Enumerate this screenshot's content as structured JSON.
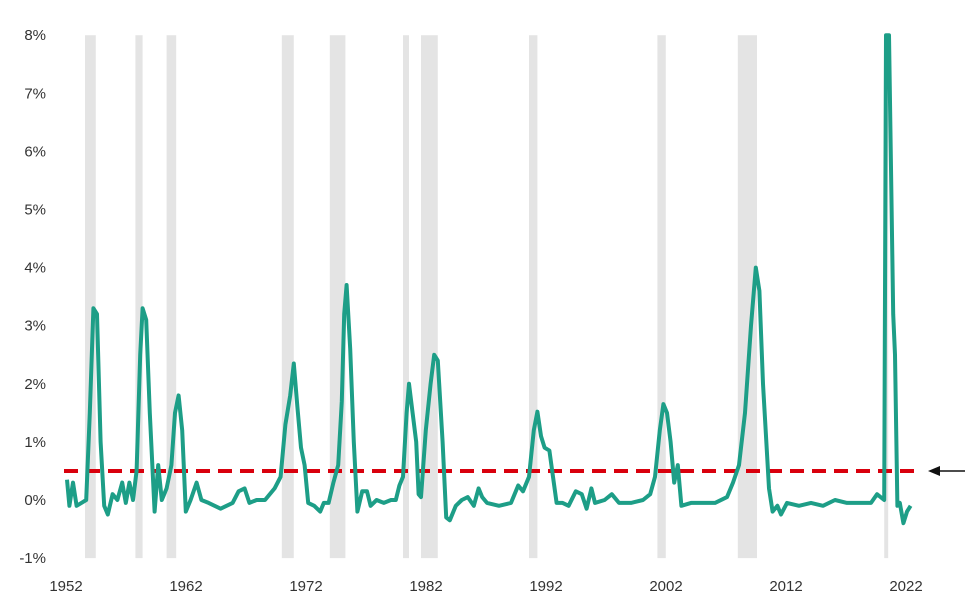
{
  "chart_data": {
    "type": "line",
    "title": "",
    "xlabel": "",
    "ylabel": "",
    "xlim": [
      1952,
      2022
    ],
    "ylim": [
      -1,
      8
    ],
    "x_ticks": [
      1952,
      1962,
      1972,
      1982,
      1992,
      2002,
      2012,
      2022
    ],
    "x_tick_labels": [
      "1952",
      "1962",
      "1972",
      "1982",
      "1992",
      "2002",
      "2012",
      "2022"
    ],
    "y_ticks": [
      -1,
      0,
      1,
      2,
      3,
      4,
      5,
      6,
      7,
      8
    ],
    "y_tick_labels": [
      "-1%",
      "0%",
      "1%",
      "2%",
      "3%",
      "4%",
      "5%",
      "6%",
      "7%",
      "8%"
    ],
    "grid": false,
    "legend": "none",
    "colors": {
      "series": "#1d9e87",
      "threshold": "#d9000d",
      "shading": "#e4e4e4",
      "arrow": "#111111"
    },
    "threshold": {
      "value": 0.5,
      "style": "dashed",
      "arrow": "right"
    },
    "shaded_periods": [
      [
        1953.5,
        1954.4
      ],
      [
        1957.7,
        1958.3
      ],
      [
        1960.3,
        1961.1
      ],
      [
        1969.9,
        1970.9
      ],
      [
        1973.9,
        1975.2
      ],
      [
        1980.0,
        1980.5
      ],
      [
        1981.5,
        1982.9
      ],
      [
        1990.5,
        1991.2
      ],
      [
        2001.2,
        2001.9
      ],
      [
        2007.9,
        2009.5
      ],
      [
        2020.1,
        2020.35
      ]
    ],
    "series": [
      {
        "x": [
          1952.0,
          1952.2,
          1952.5,
          1952.8,
          1953.2,
          1953.6,
          1953.9,
          1954.2,
          1954.5,
          1954.8,
          1955.1,
          1955.4,
          1955.8,
          1956.2,
          1956.6,
          1956.9,
          1957.2,
          1957.5,
          1957.8,
          1958.1,
          1958.3,
          1958.6,
          1958.9,
          1959.3,
          1959.6,
          1959.9,
          1960.3,
          1960.7,
          1961.0,
          1961.3,
          1961.6,
          1961.9,
          1962.3,
          1962.8,
          1963.2,
          1963.8,
          1964.3,
          1964.8,
          1965.3,
          1965.8,
          1966.3,
          1966.8,
          1967.2,
          1967.8,
          1968.5,
          1969.3,
          1969.8,
          1970.2,
          1970.6,
          1970.9,
          1971.2,
          1971.5,
          1971.8,
          1972.1,
          1972.6,
          1973.1,
          1973.4,
          1973.8,
          1974.2,
          1974.6,
          1974.9,
          1975.1,
          1975.3,
          1975.6,
          1975.9,
          1976.2,
          1976.6,
          1977.0,
          1977.3,
          1977.8,
          1978.4,
          1979.0,
          1979.4,
          1979.7,
          1980.0,
          1980.3,
          1980.5,
          1980.8,
          1981.1,
          1981.3,
          1981.5,
          1981.9,
          1982.3,
          1982.6,
          1982.9,
          1983.3,
          1983.6,
          1983.9,
          1984.4,
          1984.9,
          1985.4,
          1985.9,
          1986.3,
          1986.6,
          1987.0,
          1988.0,
          1989.0,
          1989.6,
          1990.0,
          1990.5,
          1990.9,
          1991.2,
          1991.5,
          1991.8,
          1992.2,
          1992.5,
          1992.8,
          1993.3,
          1993.8,
          1994.4,
          1994.9,
          1995.3,
          1995.7,
          1996.0,
          1996.8,
          1997.4,
          1998.0,
          1999.0,
          2000.0,
          2000.6,
          2001.0,
          2001.4,
          2001.7,
          2002.0,
          2002.3,
          2002.6,
          2002.9,
          2003.2,
          2004.0,
          2005.0,
          2006.0,
          2007.0,
          2007.5,
          2008.0,
          2008.5,
          2009.0,
          2009.4,
          2009.7,
          2010.0,
          2010.5,
          2010.8,
          2011.2,
          2011.5,
          2012.0,
          2013.0,
          2014.0,
          2015.0,
          2016.0,
          2017.0,
          2018.0,
          2019.0,
          2019.5,
          2020.1,
          2020.25,
          2020.5,
          2020.85,
          2021.0,
          2021.2,
          2021.4,
          2021.7,
          2022.0,
          2022.3
        ],
        "y": [
          0.35,
          -0.1,
          0.3,
          -0.1,
          -0.05,
          0.0,
          1.5,
          3.3,
          3.2,
          1.0,
          -0.1,
          -0.25,
          0.1,
          0.0,
          0.3,
          -0.05,
          0.3,
          0.0,
          0.5,
          2.5,
          3.3,
          3.1,
          1.5,
          -0.2,
          0.6,
          0.0,
          0.2,
          0.6,
          1.5,
          1.8,
          1.2,
          -0.2,
          0.0,
          0.3,
          0.0,
          -0.05,
          -0.1,
          -0.15,
          -0.1,
          -0.05,
          0.15,
          0.2,
          -0.05,
          0.0,
          0.0,
          0.2,
          0.4,
          1.3,
          1.8,
          2.35,
          1.6,
          0.9,
          0.6,
          -0.05,
          -0.1,
          -0.2,
          -0.05,
          -0.05,
          0.3,
          0.6,
          1.7,
          3.2,
          3.7,
          2.6,
          1.0,
          -0.2,
          0.15,
          0.15,
          -0.1,
          0.0,
          -0.05,
          0.0,
          0.0,
          0.25,
          0.4,
          1.5,
          2.0,
          1.5,
          1.0,
          0.1,
          0.05,
          1.2,
          2.0,
          2.5,
          2.4,
          1.0,
          -0.3,
          -0.35,
          -0.1,
          0.0,
          0.05,
          -0.1,
          0.2,
          0.05,
          -0.05,
          -0.1,
          -0.05,
          0.25,
          0.15,
          0.4,
          1.2,
          1.52,
          1.1,
          0.9,
          0.85,
          0.4,
          -0.05,
          -0.05,
          -0.1,
          0.15,
          0.1,
          -0.15,
          0.2,
          -0.05,
          0.0,
          0.1,
          -0.05,
          -0.05,
          0.0,
          0.1,
          0.4,
          1.2,
          1.65,
          1.5,
          1.0,
          0.3,
          0.6,
          -0.1,
          -0.05,
          -0.05,
          -0.05,
          0.05,
          0.3,
          0.6,
          1.5,
          3.0,
          4.0,
          3.6,
          2.0,
          0.2,
          -0.2,
          -0.1,
          -0.25,
          -0.05,
          -0.1,
          -0.05,
          -0.1,
          0.0,
          -0.05,
          -0.05,
          -0.05,
          0.1,
          0.0,
          8.0,
          8.0,
          3.2,
          2.5,
          -0.1,
          -0.05,
          -0.4,
          -0.2,
          -0.1
        ]
      }
    ]
  }
}
